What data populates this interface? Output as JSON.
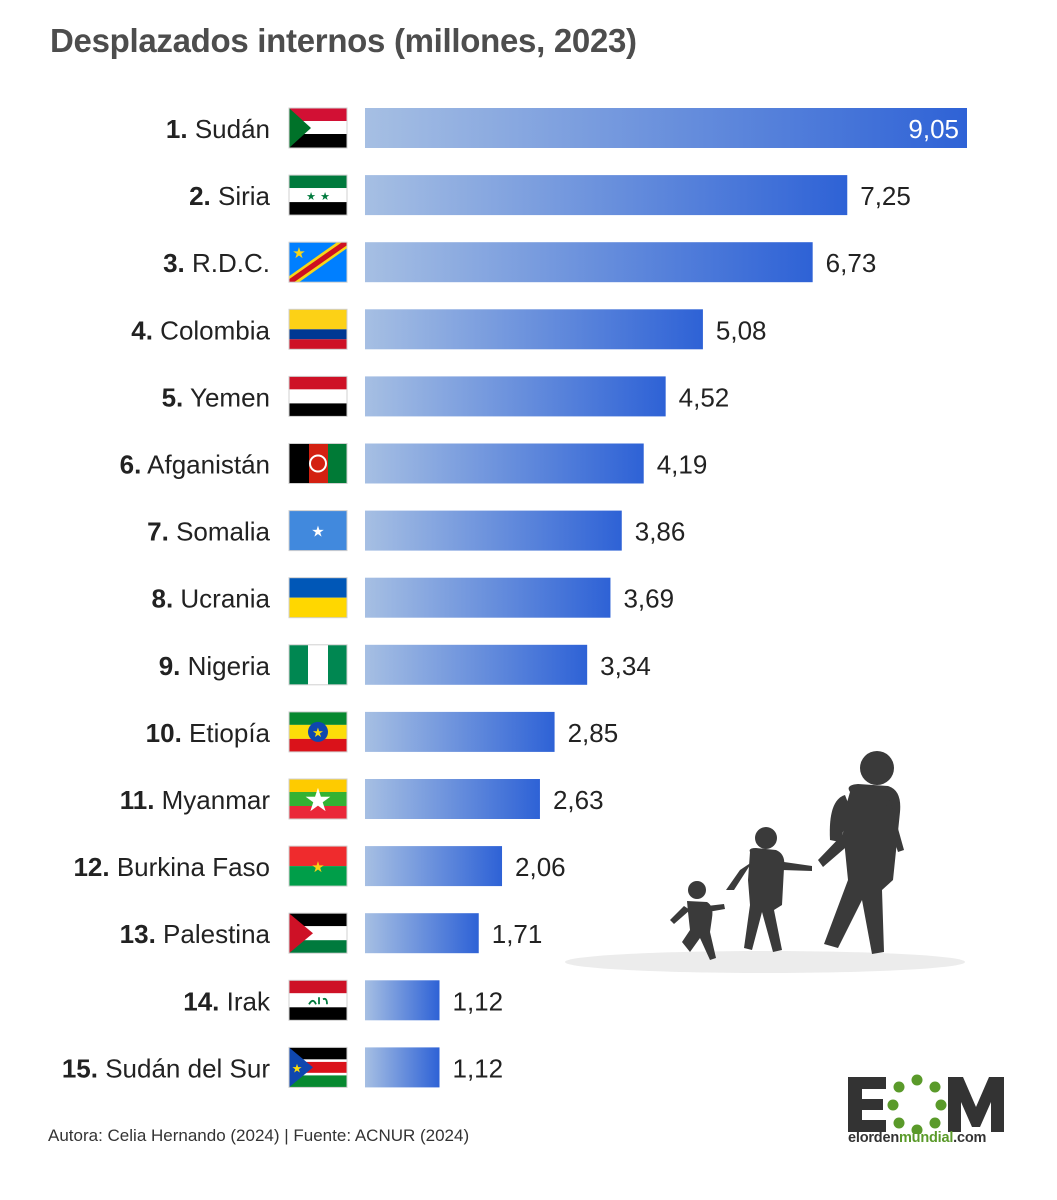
{
  "title": "Desplazados internos (millones, 2023)",
  "footer": "Autora: Celia Hernando (2024) | Fuente: ACNUR (2024)",
  "logo": {
    "text": "EOM",
    "site_prefix": "elorden",
    "site_mid": "mundial",
    "site_suffix": ".com"
  },
  "colors": {
    "bar_dark": "#2e62d6",
    "bar_light": "#a6bfe3",
    "title": "#4d4d4d",
    "logo_green": "#5a9a2a"
  },
  "chart_data": {
    "type": "bar",
    "orientation": "horizontal",
    "title": "Desplazados internos (millones, 2023)",
    "categories": [
      {
        "num": "1.",
        "name": "Sudán",
        "flag": "flag-sudan"
      },
      {
        "num": "2.",
        "name": "Siria",
        "flag": "flag-syria"
      },
      {
        "num": "3.",
        "name": "R.D.C.",
        "flag": "flag-drc"
      },
      {
        "num": "4.",
        "name": "Colombia",
        "flag": "flag-colombia"
      },
      {
        "num": "5.",
        "name": "Yemen",
        "flag": "flag-yemen"
      },
      {
        "num": "6.",
        "name": "Afganistán",
        "flag": "flag-afghanistan"
      },
      {
        "num": "7.",
        "name": "Somalia",
        "flag": "flag-somalia"
      },
      {
        "num": "8.",
        "name": "Ucrania",
        "flag": "flag-ukraine"
      },
      {
        "num": "9.",
        "name": "Nigeria",
        "flag": "flag-nigeria"
      },
      {
        "num": "10.",
        "name": "Etiopía",
        "flag": "flag-ethiopia"
      },
      {
        "num": "11.",
        "name": "Myanmar",
        "flag": "flag-myanmar"
      },
      {
        "num": "12.",
        "name": "Burkina Faso",
        "flag": "flag-burkina-faso"
      },
      {
        "num": "13.",
        "name": "Palestina",
        "flag": "flag-palestine"
      },
      {
        "num": "14.",
        "name": "Irak",
        "flag": "flag-iraq"
      },
      {
        "num": "15.",
        "name": "Sudán del Sur",
        "flag": "flag-south-sudan"
      }
    ],
    "values": [
      9.05,
      7.25,
      6.73,
      5.08,
      4.52,
      4.19,
      3.86,
      3.69,
      3.34,
      2.85,
      2.63,
      2.06,
      1.71,
      1.12,
      1.12
    ],
    "value_labels": [
      "9,05",
      "7,25",
      "6,73",
      "5,08",
      "4,52",
      "4,19",
      "3,86",
      "3,69",
      "3,34",
      "2,85",
      "2,63",
      "2,06",
      "1,71",
      "1,12",
      "1,12"
    ],
    "xlim": [
      0,
      9.05
    ],
    "grid": false,
    "legend": "none"
  }
}
